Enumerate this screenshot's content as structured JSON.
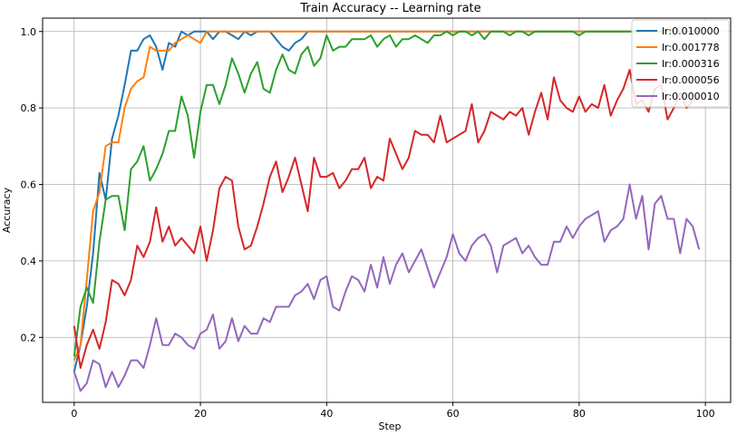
{
  "chart_data": {
    "type": "line",
    "title": "Train Accuracy -- Learning rate",
    "xlabel": "Step",
    "ylabel": "Accuracy",
    "xlim": [
      -5,
      104
    ],
    "ylim": [
      0.03,
      1.035
    ],
    "xticks": [
      0,
      20,
      40,
      60,
      80,
      100
    ],
    "yticks": [
      0.2,
      0.4,
      0.6,
      0.8,
      1.0
    ],
    "xtick_labels": [
      "0",
      "20",
      "40",
      "60",
      "80",
      "100"
    ],
    "ytick_labels": [
      "0.2",
      "0.4",
      "0.6",
      "0.8",
      "1.0"
    ],
    "grid": true,
    "legend_position": "top-right",
    "series": [
      {
        "name": "lr:0.010000",
        "color": "#1f77b4",
        "x": [
          0,
          1,
          2,
          3,
          4,
          5,
          6,
          7,
          8,
          9,
          10,
          11,
          12,
          13,
          14,
          15,
          16,
          17,
          18,
          19,
          20,
          21,
          22,
          23,
          24,
          25,
          26,
          27,
          28,
          29,
          30,
          31,
          32,
          33,
          34,
          35,
          36,
          37,
          38,
          39,
          40,
          41,
          42,
          43,
          44,
          45,
          46,
          47,
          48,
          49,
          50,
          51,
          52,
          53,
          54,
          55,
          56,
          57,
          58,
          59,
          60,
          61,
          62,
          63,
          64,
          65,
          66,
          67,
          68,
          69,
          70,
          71,
          72,
          73,
          74,
          75,
          76,
          77,
          78,
          79,
          80,
          81,
          82,
          83,
          84,
          85,
          86,
          87,
          88,
          89,
          90,
          91,
          92,
          93,
          94,
          95,
          96,
          97,
          98,
          99
        ],
        "y": [
          0.11,
          0.18,
          0.28,
          0.42,
          0.63,
          0.56,
          0.72,
          0.78,
          0.86,
          0.95,
          0.95,
          0.98,
          0.99,
          0.96,
          0.9,
          0.97,
          0.96,
          1.0,
          0.99,
          1.0,
          1.0,
          1.0,
          0.98,
          1.0,
          1.0,
          0.99,
          0.98,
          1.0,
          0.99,
          1.0,
          1.0,
          1.0,
          0.98,
          0.96,
          0.95,
          0.97,
          0.98,
          1.0,
          1.0,
          1.0,
          1.0,
          1.0,
          1.0,
          1.0,
          1.0,
          1.0,
          1.0,
          1.0,
          1.0,
          1.0,
          1.0,
          1.0,
          1.0,
          1.0,
          1.0,
          1.0,
          1.0,
          1.0,
          1.0,
          1.0,
          1.0,
          1.0,
          1.0,
          1.0,
          1.0,
          1.0,
          1.0,
          1.0,
          1.0,
          1.0,
          1.0,
          1.0,
          1.0,
          1.0,
          1.0,
          1.0,
          1.0,
          1.0,
          1.0,
          1.0,
          1.0,
          1.0,
          1.0,
          1.0,
          1.0,
          1.0,
          1.0,
          1.0,
          1.0,
          1.0,
          1.0,
          1.0,
          1.0,
          1.0,
          1.0,
          1.0,
          1.0,
          1.0,
          1.0,
          1.0
        ]
      },
      {
        "name": "lr:0.001778",
        "color": "#ff7f0e",
        "x": [
          0,
          1,
          2,
          3,
          4,
          5,
          6,
          7,
          8,
          9,
          10,
          11,
          12,
          13,
          14,
          15,
          16,
          17,
          18,
          19,
          20,
          21,
          22,
          23,
          24,
          25,
          26,
          27,
          28,
          29,
          30,
          31,
          32,
          33,
          34,
          35,
          36,
          37,
          38,
          39,
          40,
          41,
          42,
          43,
          44,
          45,
          46,
          47,
          48,
          49,
          50,
          51,
          52,
          53,
          54,
          55,
          56,
          57,
          58,
          59,
          60,
          61,
          62,
          63,
          64,
          65,
          66,
          67,
          68,
          69,
          70,
          71,
          72,
          73,
          74,
          75,
          76,
          77,
          78,
          79,
          80,
          81,
          82,
          83,
          84,
          85,
          86,
          87,
          88,
          89,
          90,
          91,
          92,
          93,
          94,
          95,
          96,
          97,
          98,
          99
        ],
        "y": [
          0.14,
          0.18,
          0.35,
          0.53,
          0.58,
          0.7,
          0.71,
          0.71,
          0.8,
          0.85,
          0.87,
          0.88,
          0.96,
          0.95,
          0.95,
          0.95,
          0.97,
          0.98,
          0.99,
          0.98,
          0.97,
          1.0,
          1.0,
          1.0,
          1.0,
          1.0,
          1.0,
          1.0,
          1.0,
          1.0,
          1.0,
          1.0,
          1.0,
          1.0,
          1.0,
          1.0,
          1.0,
          1.0,
          1.0,
          1.0,
          1.0,
          1.0,
          1.0,
          1.0,
          1.0,
          1.0,
          1.0,
          1.0,
          1.0,
          1.0,
          1.0,
          1.0,
          1.0,
          1.0,
          1.0,
          1.0,
          1.0,
          1.0,
          1.0,
          1.0,
          1.0,
          1.0,
          1.0,
          1.0,
          1.0,
          1.0,
          1.0,
          1.0,
          1.0,
          1.0,
          1.0,
          1.0,
          1.0,
          1.0,
          1.0,
          1.0,
          1.0,
          1.0,
          1.0,
          1.0,
          1.0,
          1.0,
          1.0,
          1.0,
          1.0,
          1.0,
          1.0,
          1.0,
          1.0,
          1.0,
          1.0,
          1.0,
          1.0,
          1.0,
          1.0,
          1.0,
          1.0,
          1.0,
          1.0,
          1.0
        ]
      },
      {
        "name": "lr:0.000316",
        "color": "#2ca02c",
        "x": [
          0,
          1,
          2,
          3,
          4,
          5,
          6,
          7,
          8,
          9,
          10,
          11,
          12,
          13,
          14,
          15,
          16,
          17,
          18,
          19,
          20,
          21,
          22,
          23,
          24,
          25,
          26,
          27,
          28,
          29,
          30,
          31,
          32,
          33,
          34,
          35,
          36,
          37,
          38,
          39,
          40,
          41,
          42,
          43,
          44,
          45,
          46,
          47,
          48,
          49,
          50,
          51,
          52,
          53,
          54,
          55,
          56,
          57,
          58,
          59,
          60,
          61,
          62,
          63,
          64,
          65,
          66,
          67,
          68,
          69,
          70,
          71,
          72,
          73,
          74,
          75,
          76,
          77,
          78,
          79,
          80,
          81,
          82,
          83,
          84,
          85,
          86,
          87,
          88,
          89,
          90,
          91,
          92,
          93,
          94,
          95,
          96,
          97,
          98,
          99
        ],
        "y": [
          0.15,
          0.28,
          0.33,
          0.29,
          0.45,
          0.56,
          0.57,
          0.57,
          0.48,
          0.64,
          0.66,
          0.7,
          0.61,
          0.64,
          0.68,
          0.74,
          0.74,
          0.83,
          0.78,
          0.67,
          0.79,
          0.86,
          0.86,
          0.81,
          0.86,
          0.93,
          0.89,
          0.84,
          0.89,
          0.92,
          0.85,
          0.84,
          0.9,
          0.94,
          0.9,
          0.89,
          0.94,
          0.96,
          0.91,
          0.93,
          0.99,
          0.95,
          0.96,
          0.96,
          0.98,
          0.98,
          0.98,
          0.99,
          0.96,
          0.98,
          0.99,
          0.96,
          0.98,
          0.98,
          0.99,
          0.98,
          0.97,
          0.99,
          0.99,
          1.0,
          0.99,
          1.0,
          1.0,
          0.99,
          1.0,
          0.98,
          1.0,
          1.0,
          1.0,
          0.99,
          1.0,
          1.0,
          0.99,
          1.0,
          1.0,
          1.0,
          1.0,
          1.0,
          1.0,
          1.0,
          0.99,
          1.0,
          1.0,
          1.0,
          1.0,
          1.0,
          1.0,
          1.0,
          1.0,
          1.0,
          1.0,
          1.0,
          1.0,
          1.0,
          1.0,
          1.0,
          1.0,
          1.0,
          1.0,
          1.0
        ]
      },
      {
        "name": "lr:0.000056",
        "color": "#d62728",
        "x": [
          0,
          1,
          2,
          3,
          4,
          5,
          6,
          7,
          8,
          9,
          10,
          11,
          12,
          13,
          14,
          15,
          16,
          17,
          18,
          19,
          20,
          21,
          22,
          23,
          24,
          25,
          26,
          27,
          28,
          29,
          30,
          31,
          32,
          33,
          34,
          35,
          36,
          37,
          38,
          39,
          40,
          41,
          42,
          43,
          44,
          45,
          46,
          47,
          48,
          49,
          50,
          51,
          52,
          53,
          54,
          55,
          56,
          57,
          58,
          59,
          60,
          61,
          62,
          63,
          64,
          65,
          66,
          67,
          68,
          69,
          70,
          71,
          72,
          73,
          74,
          75,
          76,
          77,
          78,
          79,
          80,
          81,
          82,
          83,
          84,
          85,
          86,
          87,
          88,
          89,
          90,
          91,
          92,
          93,
          94,
          95,
          96,
          97,
          98,
          99
        ],
        "y": [
          0.23,
          0.12,
          0.18,
          0.22,
          0.17,
          0.24,
          0.35,
          0.34,
          0.31,
          0.35,
          0.44,
          0.41,
          0.45,
          0.54,
          0.45,
          0.49,
          0.44,
          0.46,
          0.44,
          0.42,
          0.49,
          0.4,
          0.48,
          0.59,
          0.62,
          0.61,
          0.49,
          0.43,
          0.44,
          0.49,
          0.55,
          0.62,
          0.66,
          0.58,
          0.62,
          0.67,
          0.6,
          0.53,
          0.67,
          0.62,
          0.62,
          0.63,
          0.59,
          0.61,
          0.64,
          0.64,
          0.67,
          0.59,
          0.62,
          0.61,
          0.72,
          0.68,
          0.64,
          0.67,
          0.74,
          0.73,
          0.73,
          0.71,
          0.78,
          0.71,
          0.72,
          0.73,
          0.74,
          0.81,
          0.71,
          0.74,
          0.79,
          0.78,
          0.77,
          0.79,
          0.78,
          0.8,
          0.73,
          0.79,
          0.84,
          0.77,
          0.88,
          0.82,
          0.8,
          0.79,
          0.83,
          0.79,
          0.81,
          0.8,
          0.86,
          0.78,
          0.82,
          0.85,
          0.9,
          0.81,
          0.82,
          0.79,
          0.85,
          0.86,
          0.77,
          0.8,
          0.84,
          0.8,
          0.82,
          0.83
        ]
      },
      {
        "name": "lr:0.000010",
        "color": "#9467bd",
        "x": [
          0,
          1,
          2,
          3,
          4,
          5,
          6,
          7,
          8,
          9,
          10,
          11,
          12,
          13,
          14,
          15,
          16,
          17,
          18,
          19,
          20,
          21,
          22,
          23,
          24,
          25,
          26,
          27,
          28,
          29,
          30,
          31,
          32,
          33,
          34,
          35,
          36,
          37,
          38,
          39,
          40,
          41,
          42,
          43,
          44,
          45,
          46,
          47,
          48,
          49,
          50,
          51,
          52,
          53,
          54,
          55,
          56,
          57,
          58,
          59,
          60,
          61,
          62,
          63,
          64,
          65,
          66,
          67,
          68,
          69,
          70,
          71,
          72,
          73,
          74,
          75,
          76,
          77,
          78,
          79,
          80,
          81,
          82,
          83,
          84,
          85,
          86,
          87,
          88,
          89,
          90,
          91,
          92,
          93,
          94,
          95,
          96,
          97,
          98,
          99
        ],
        "y": [
          0.11,
          0.06,
          0.08,
          0.14,
          0.13,
          0.07,
          0.11,
          0.07,
          0.1,
          0.14,
          0.14,
          0.12,
          0.18,
          0.25,
          0.18,
          0.18,
          0.21,
          0.2,
          0.18,
          0.17,
          0.21,
          0.22,
          0.26,
          0.17,
          0.19,
          0.25,
          0.19,
          0.23,
          0.21,
          0.21,
          0.25,
          0.24,
          0.28,
          0.28,
          0.28,
          0.31,
          0.32,
          0.34,
          0.3,
          0.35,
          0.36,
          0.28,
          0.27,
          0.32,
          0.36,
          0.35,
          0.32,
          0.39,
          0.33,
          0.41,
          0.34,
          0.39,
          0.42,
          0.37,
          0.4,
          0.43,
          0.38,
          0.33,
          0.37,
          0.41,
          0.47,
          0.42,
          0.4,
          0.44,
          0.46,
          0.47,
          0.44,
          0.37,
          0.44,
          0.45,
          0.46,
          0.42,
          0.44,
          0.41,
          0.39,
          0.39,
          0.45,
          0.45,
          0.49,
          0.46,
          0.49,
          0.51,
          0.52,
          0.53,
          0.45,
          0.48,
          0.49,
          0.51,
          0.6,
          0.51,
          0.57,
          0.43,
          0.55,
          0.57,
          0.51,
          0.51,
          0.42,
          0.51,
          0.49,
          0.43
        ]
      }
    ]
  }
}
